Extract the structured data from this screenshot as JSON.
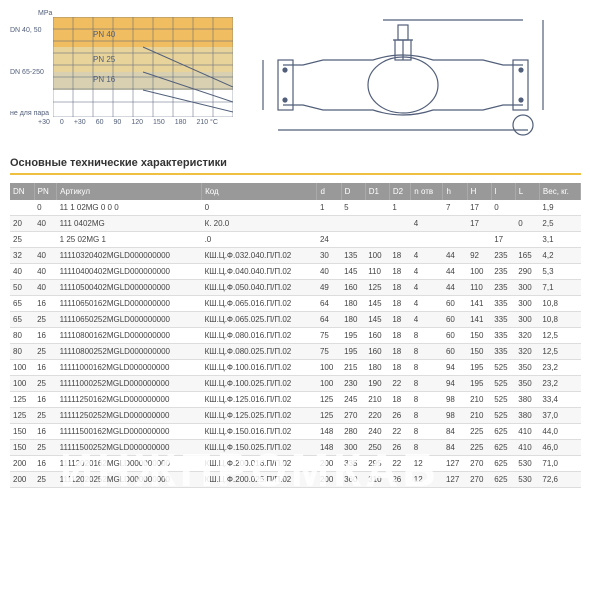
{
  "chart": {
    "mpa_label": "MPa",
    "y_labels": [
      "DN 40, 50",
      "DN 65-250",
      "не для пара"
    ],
    "x_labels": [
      "+30",
      "0",
      "+30",
      "60",
      "90",
      "120",
      "150",
      "180",
      "210 °C"
    ],
    "bands": [
      {
        "label": "PN 40",
        "y": 15,
        "color": "#f0bd60"
      },
      {
        "label": "PN 25",
        "y": 40,
        "color": "#e8d49a"
      },
      {
        "label": "PN 16",
        "y": 58,
        "color": "#d8d0b0"
      }
    ],
    "grid_color": "#525f7a",
    "band_label_color": "#525f7a"
  },
  "section_title": "Основные технические характеристики",
  "columns": [
    "DN",
    "PN",
    "Артикул",
    "Код",
    "d",
    "D",
    "D1",
    "D2",
    "n отв",
    "h",
    "H",
    "l",
    "L",
    "Вес, кг."
  ],
  "rows": [
    [
      "",
      "0",
      "11  1   02MG    0   0     0",
      "         0",
      "1",
      "5",
      "",
      "1",
      "",
      "7",
      "17",
      "0",
      "",
      "1,9"
    ],
    [
      "20",
      "40",
      "111       0402MG",
      "К.      20.0",
      "",
      "",
      "",
      "",
      "4",
      "",
      "17",
      "",
      "0",
      "2,5"
    ],
    [
      "25",
      "",
      "1    25    02MG    1",
      "      .0",
      "24",
      "",
      "",
      "",
      "",
      "",
      "",
      "17",
      "",
      "3,1"
    ],
    [
      "32",
      "40",
      "11110320402MGLD000000000",
      "КШ.Ц.Ф.032.040.П/П.02",
      "30",
      "135",
      "100",
      "18",
      "4",
      "44",
      "92",
      "235",
      "165",
      "4,2"
    ],
    [
      "40",
      "40",
      "11110400402MGLD000000000",
      "КШ.Ц.Ф.040.040.П/П.02",
      "40",
      "145",
      "110",
      "18",
      "4",
      "44",
      "100",
      "235",
      "290",
      "5,3"
    ],
    [
      "50",
      "40",
      "11110500402MGLD000000000",
      "КШ.Ц.Ф.050.040.П/П.02",
      "49",
      "160",
      "125",
      "18",
      "4",
      "44",
      "110",
      "235",
      "300",
      "7,1"
    ],
    [
      "65",
      "16",
      "11110650162MGLD000000000",
      "КШ.Ц.Ф.065.016.П/П.02",
      "64",
      "180",
      "145",
      "18",
      "4",
      "60",
      "141",
      "335",
      "300",
      "10,8"
    ],
    [
      "65",
      "25",
      "11110650252MGLD000000000",
      "КШ.Ц.Ф.065.025.П/П.02",
      "64",
      "180",
      "145",
      "18",
      "4",
      "60",
      "141",
      "335",
      "300",
      "10,8"
    ],
    [
      "80",
      "16",
      "11110800162MGLD000000000",
      "КШ.Ц.Ф.080.016.П/П.02",
      "75",
      "195",
      "160",
      "18",
      "8",
      "60",
      "150",
      "335",
      "320",
      "12,5"
    ],
    [
      "80",
      "25",
      "11110800252MGLD000000000",
      "КШ.Ц.Ф.080.025.П/П.02",
      "75",
      "195",
      "160",
      "18",
      "8",
      "60",
      "150",
      "335",
      "320",
      "12,5"
    ],
    [
      "100",
      "16",
      "11111000162MGLD000000000",
      "КШ.Ц.Ф.100.016.П/П.02",
      "100",
      "215",
      "180",
      "18",
      "8",
      "94",
      "195",
      "525",
      "350",
      "23,2"
    ],
    [
      "100",
      "25",
      "11111000252MGLD000000000",
      "КШ.Ц.Ф.100.025.П/П.02",
      "100",
      "230",
      "190",
      "22",
      "8",
      "94",
      "195",
      "525",
      "350",
      "23,2"
    ],
    [
      "125",
      "16",
      "11111250162MGLD000000000",
      "КШ.Ц.Ф.125.016.П/П.02",
      "125",
      "245",
      "210",
      "18",
      "8",
      "98",
      "210",
      "525",
      "380",
      "33,4"
    ],
    [
      "125",
      "25",
      "11111250252MGLD000000000",
      "КШ.Ц.Ф.125.025.П/П.02",
      "125",
      "270",
      "220",
      "26",
      "8",
      "98",
      "210",
      "525",
      "380",
      "37,0"
    ],
    [
      "150",
      "16",
      "11111500162MGLD000000000",
      "КШ.Ц.Ф.150.016.П/П.02",
      "148",
      "280",
      "240",
      "22",
      "8",
      "84",
      "225",
      "625",
      "410",
      "44,0"
    ],
    [
      "150",
      "25",
      "11111500252MGLD000000000",
      "КШ.Ц.Ф.150.025.П/П.02",
      "148",
      "300",
      "250",
      "26",
      "8",
      "84",
      "225",
      "625",
      "410",
      "46,0"
    ],
    [
      "200",
      "16",
      "11112020162MGLD000000000",
      "КШ.Ц.Ф.200.016.П/П.02",
      "200",
      "335",
      "295",
      "22",
      "12",
      "127",
      "270",
      "625",
      "530",
      "71,0"
    ],
    [
      "200",
      "25",
      "11112020252MGLD000000000",
      "КШ.Ц.Ф.200.025.П/П.02",
      "200",
      "360",
      "310",
      "26",
      "12",
      "127",
      "270",
      "625",
      "530",
      "72,6"
    ]
  ],
  "watermark": "ИНЖПРОМКАБ"
}
